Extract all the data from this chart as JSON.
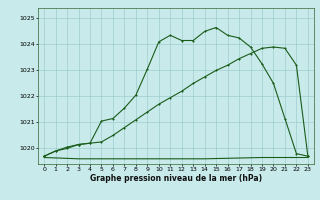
{
  "title": "Graphe pression niveau de la mer (hPa)",
  "bg_color": "#c8eaea",
  "grid_color": "#a0cccc",
  "line_color": "#1a5c1a",
  "xlim": [
    -0.5,
    23.5
  ],
  "ylim": [
    1019.4,
    1025.4
  ],
  "yticks": [
    1020,
    1021,
    1022,
    1023,
    1024,
    1025
  ],
  "xticks": [
    0,
    1,
    2,
    3,
    4,
    5,
    6,
    7,
    8,
    9,
    10,
    11,
    12,
    13,
    14,
    15,
    16,
    17,
    18,
    19,
    20,
    21,
    22,
    23
  ],
  "line1_x": [
    0,
    1,
    2,
    3,
    4,
    5,
    6,
    7,
    8,
    9,
    10,
    11,
    12,
    13,
    14,
    15,
    16,
    17,
    18,
    19,
    20,
    21,
    22,
    23
  ],
  "line1_y": [
    1019.7,
    1019.9,
    1020.0,
    1020.15,
    1020.2,
    1021.05,
    1021.15,
    1021.55,
    1022.05,
    1023.05,
    1024.1,
    1024.35,
    1024.15,
    1024.15,
    1024.5,
    1024.65,
    1024.35,
    1024.25,
    1023.9,
    1023.25,
    1022.5,
    1021.15,
    1019.8,
    1019.7
  ],
  "line2_x": [
    0,
    1,
    2,
    3,
    4,
    5,
    6,
    7,
    8,
    9,
    10,
    11,
    12,
    13,
    14,
    15,
    16,
    17,
    18,
    19,
    20,
    21,
    22,
    23
  ],
  "line2_y": [
    1019.7,
    1019.9,
    1020.05,
    1020.15,
    1020.2,
    1020.25,
    1020.5,
    1020.8,
    1021.1,
    1021.4,
    1021.7,
    1021.95,
    1022.2,
    1022.5,
    1022.75,
    1023.0,
    1023.2,
    1023.45,
    1023.65,
    1023.85,
    1023.9,
    1023.85,
    1023.2,
    1019.7
  ],
  "line3_x": [
    0,
    3,
    14,
    19,
    23
  ],
  "line3_y": [
    1019.65,
    1019.6,
    1019.6,
    1019.65,
    1019.65
  ]
}
